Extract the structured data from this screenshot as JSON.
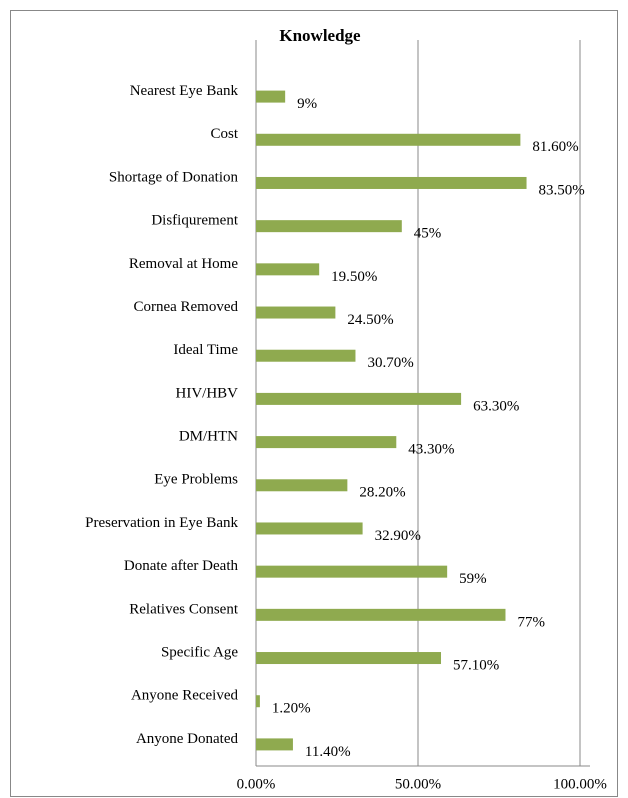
{
  "chart_data": {
    "type": "bar",
    "orientation": "horizontal",
    "title": "Knowledge",
    "categories": [
      "Nearest Eye Bank",
      "Cost",
      "Shortage of Donation",
      "Disfiqurement",
      "Removal at Home",
      "Cornea Removed",
      "Ideal Time",
      "HIV/HBV",
      "DM/HTN",
      "Eye Problems",
      "Preservation in Eye Bank",
      "Donate after Death",
      "Relatives Consent",
      "Specific Age",
      "Anyone Received",
      "Anyone Donated"
    ],
    "values": [
      9,
      81.6,
      83.5,
      45,
      19.5,
      24.5,
      30.7,
      63.3,
      43.3,
      28.2,
      32.9,
      59,
      77,
      57.1,
      1.2,
      11.4
    ],
    "value_labels": [
      "9%",
      "81.60%",
      "83.50%",
      "45%",
      "19.50%",
      "24.50%",
      "30.70%",
      "63.30%",
      "43.30%",
      "28.20%",
      "32.90%",
      "59%",
      "77%",
      "57.10%",
      "1.20%",
      "11.40%"
    ],
    "color": "#8faa4f",
    "xlim": [
      0,
      100
    ],
    "xticks": [
      {
        "value": 0,
        "label": "0.00%"
      },
      {
        "value": 50,
        "label": "50.00%"
      },
      {
        "value": 100,
        "label": "100.00%"
      }
    ],
    "grid": true
  }
}
